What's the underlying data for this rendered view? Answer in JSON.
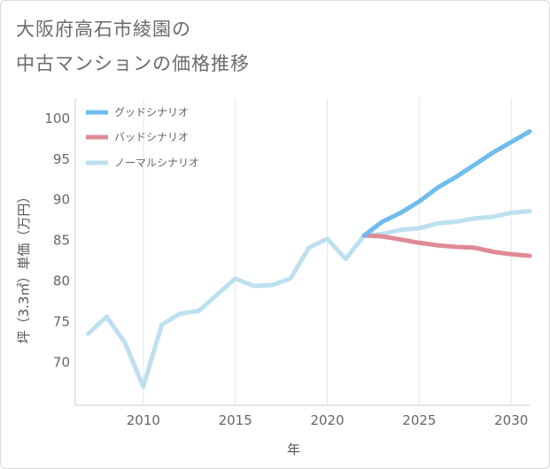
{
  "title_line1": "大阪府高石市綾園の",
  "title_line2": "中古マンションの価格推移",
  "chart_data": {
    "type": "line",
    "title": "大阪府高石市綾園の中古マンションの価格推移",
    "xlabel": "年",
    "ylabel": "坪（3.3㎡）単価（万円）",
    "xlim": [
      2006.3,
      2031
    ],
    "ylim": [
      64.7,
      102.5
    ],
    "xticks": [
      2010,
      2015,
      2020,
      2025,
      2030
    ],
    "yticks": [
      70,
      75,
      80,
      85,
      90,
      95,
      100
    ],
    "legend_position": "top-left",
    "series": [
      {
        "name": "グッドシナリオ",
        "color": "#6fbbee",
        "width": 5,
        "x": [
          2022,
          2023,
          2024,
          2025,
          2026,
          2027,
          2028,
          2029,
          2030,
          2031
        ],
        "y": [
          85.6,
          87.3,
          88.4,
          89.8,
          91.5,
          92.8,
          94.3,
          95.8,
          97.1,
          98.4
        ]
      },
      {
        "name": "バッドシナリオ",
        "color": "#e08a95",
        "width": 5,
        "x": [
          2022,
          2023,
          2024,
          2025,
          2026,
          2027,
          2028,
          2029,
          2030,
          2031
        ],
        "y": [
          85.6,
          85.5,
          85.1,
          84.7,
          84.4,
          84.2,
          84.1,
          83.6,
          83.3,
          83.1
        ]
      },
      {
        "name": "ノーマルシナリオ",
        "color": "#bde0f0",
        "width": 5,
        "x": [
          2007,
          2008,
          2009,
          2010,
          2011,
          2012,
          2013,
          2014,
          2015,
          2016,
          2017,
          2018,
          2019,
          2020,
          2021,
          2022,
          2023,
          2024,
          2025,
          2026,
          2027,
          2028,
          2029,
          2030,
          2031
        ],
        "y": [
          73.5,
          75.6,
          72.4,
          67.0,
          74.6,
          76.0,
          76.3,
          78.3,
          80.3,
          79.4,
          79.5,
          80.3,
          84.1,
          85.2,
          82.7,
          85.6,
          85.8,
          86.3,
          86.5,
          87.1,
          87.3,
          87.7,
          87.9,
          88.4,
          88.6
        ]
      }
    ]
  }
}
